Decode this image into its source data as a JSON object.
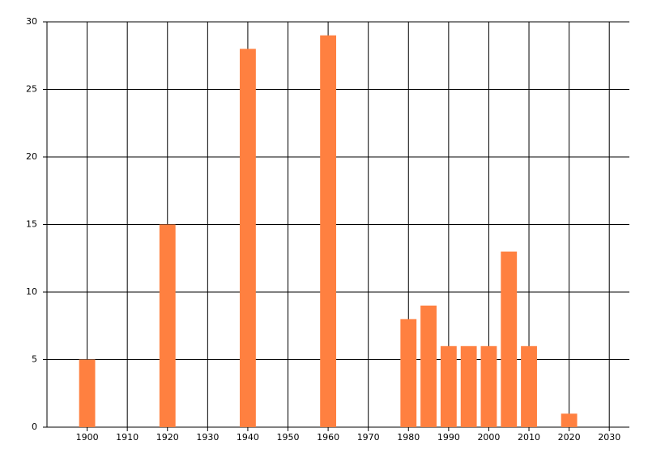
{
  "chart_data": {
    "type": "bar",
    "x": [
      1900,
      1920,
      1940,
      1960,
      1980,
      1985,
      1990,
      1995,
      2000,
      2005,
      2010,
      2020
    ],
    "values": [
      5,
      15,
      28,
      29,
      8,
      9,
      6,
      6,
      6,
      13,
      6,
      1
    ],
    "color": "#ff8040",
    "xlim": [
      1890,
      2035
    ],
    "xticks": [
      1900,
      1910,
      1920,
      1930,
      1940,
      1950,
      1960,
      1970,
      1980,
      1990,
      2000,
      2010,
      2020,
      2030
    ],
    "ylim": [
      0,
      30
    ],
    "yticks": [
      0,
      5,
      10,
      15,
      20,
      25,
      30
    ],
    "grid": true
  }
}
